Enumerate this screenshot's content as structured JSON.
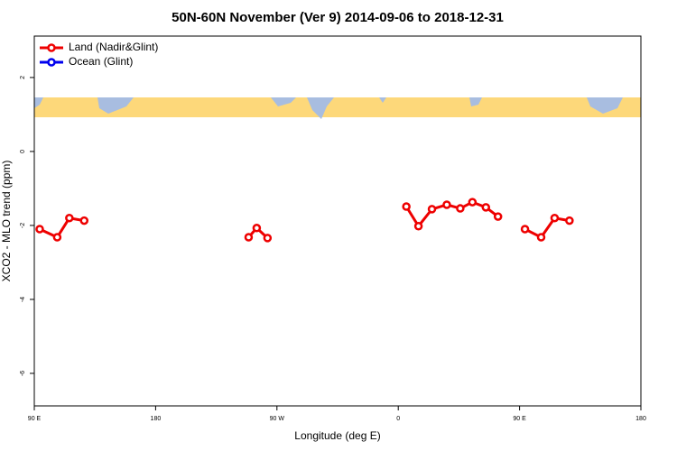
{
  "chart_data": {
    "type": "line",
    "title": "50N-60N November (Ver 9)   2014-09-06 to 2018-12-31",
    "x_label": "Longitude (deg E)",
    "y_label": "XCO2 - MLO trend (ppm)",
    "xlim": [
      90,
      540
    ],
    "ylim": [
      -6.88,
      3.12
    ],
    "xticks": [
      {
        "value": 90,
        "label": "90 E"
      },
      180,
      {
        "value": 270,
        "label": "90 W"
      },
      {
        "value": 360,
        "label": "0"
      },
      {
        "value": 450,
        "label": "90 E"
      },
      {
        "value": 540,
        "label": "180"
      }
    ],
    "yticks": [
      -6,
      -4,
      -2,
      0,
      2
    ],
    "legend": "top-left",
    "series": [
      {
        "name": "Land (Nadir&Glint)",
        "color": "#ee0000",
        "x": [
          94,
          107,
          116,
          127,
          null,
          249,
          255,
          263,
          null,
          366,
          375,
          385,
          396,
          406,
          415,
          425,
          434,
          null,
          454,
          466,
          476,
          487
        ],
        "values": [
          -2.1,
          -2.32,
          -1.8,
          -1.87,
          null,
          -2.32,
          -2.07,
          -2.34,
          null,
          -1.49,
          -2.02,
          -1.56,
          -1.44,
          -1.54,
          -1.37,
          -1.51,
          -1.76,
          null,
          -2.1,
          -2.32,
          -1.8,
          -1.87
        ]
      },
      {
        "name": "Ocean (Glint)",
        "color": "#0000ee",
        "x": [],
        "values": []
      }
    ]
  }
}
